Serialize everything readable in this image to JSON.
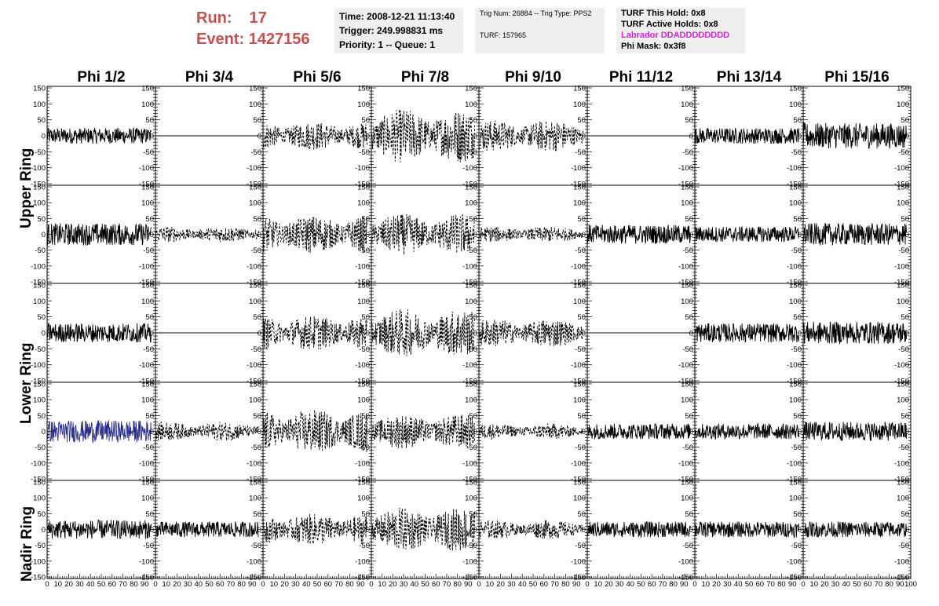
{
  "header": {
    "run_label": "Run:",
    "run_value": "17",
    "event_label": "Event:",
    "event_value": "1427156",
    "time": "Time: 2008-12-21 11:13:40",
    "trigger": "Trigger: 249.998831 ms",
    "priority": "Priority: 1 -- Queue: 1",
    "trig_num": "Trig Num: 26884 -- Trig Type: PPS2",
    "turf": "TURF: 157965",
    "turf_hold": "TURF This Hold: 0x8",
    "turf_active": "TURF Active Holds: 0x8",
    "labrador": "Labrador DDADDDDDDDD",
    "phi_mask": "Phi Mask: 0x3f8"
  },
  "colors": {
    "run_text": "#c75050",
    "labrador_text": "#e020e0",
    "panel_bg": "#efefef",
    "trace": "#000000",
    "highlight_trace": "#2b2f8a"
  },
  "phi_labels": [
    "Phi 1/2",
    "Phi 3/4",
    "Phi 5/6",
    "Phi 7/8",
    "Phi 9/10",
    "Phi 11/12",
    "Phi 13/14",
    "Phi 15/16"
  ],
  "ring_labels": {
    "upper": "Upper Ring",
    "lower": "Lower Ring",
    "nadir": "Nadir Ring"
  },
  "chart_data": {
    "type": "line",
    "description": "Waveform grid: 5 rows x 8 phi sectors of waveform traces (voltage vs sample time)",
    "xlim": [
      0,
      100
    ],
    "ylim": [
      -150,
      150
    ],
    "x_ticks": [
      0,
      10,
      20,
      30,
      40,
      50,
      60,
      70,
      80,
      90,
      100
    ],
    "y_ticks_rows_0_3": [
      -100,
      -50,
      0,
      50,
      100
    ],
    "y_ticks_row_4": [
      -150,
      -100,
      -50,
      0,
      50,
      100,
      150
    ],
    "rows": [
      {
        "group": "upper",
        "traces": [
          {
            "amp": 25,
            "style": "solid"
          },
          {
            "amp": 0,
            "style": "flat"
          },
          {
            "amp": 45,
            "style": "dashed"
          },
          {
            "amp": 85,
            "style": "dashed"
          },
          {
            "amp": 50,
            "style": "dashed"
          },
          {
            "amp": 0,
            "style": "flat"
          },
          {
            "amp": 25,
            "style": "solid"
          },
          {
            "amp": 40,
            "style": "solid"
          }
        ]
      },
      {
        "group": "upper",
        "traces": [
          {
            "amp": 35,
            "style": "solid"
          },
          {
            "amp": 25,
            "style": "dashed"
          },
          {
            "amp": 60,
            "style": "dashed"
          },
          {
            "amp": 65,
            "style": "dashed"
          },
          {
            "amp": 25,
            "style": "dashed"
          },
          {
            "amp": 30,
            "style": "solid"
          },
          {
            "amp": 25,
            "style": "solid"
          },
          {
            "amp": 35,
            "style": "solid"
          }
        ]
      },
      {
        "group": "lower",
        "traces": [
          {
            "amp": 30,
            "style": "solid"
          },
          {
            "amp": 0,
            "style": "flat"
          },
          {
            "amp": 55,
            "style": "dashed"
          },
          {
            "amp": 75,
            "style": "dashed"
          },
          {
            "amp": 45,
            "style": "dashed"
          },
          {
            "amp": 0,
            "style": "flat"
          },
          {
            "amp": 30,
            "style": "solid"
          },
          {
            "amp": 35,
            "style": "solid"
          }
        ]
      },
      {
        "group": "lower",
        "traces": [
          {
            "amp": 35,
            "style": "highlight"
          },
          {
            "amp": 30,
            "style": "dashed"
          },
          {
            "amp": 70,
            "style": "dashed"
          },
          {
            "amp": 55,
            "style": "dashed"
          },
          {
            "amp": 25,
            "style": "dashed"
          },
          {
            "amp": 25,
            "style": "solid"
          },
          {
            "amp": 25,
            "style": "solid"
          },
          {
            "amp": 30,
            "style": "solid"
          }
        ]
      },
      {
        "group": "nadir",
        "traces": [
          {
            "amp": 30,
            "style": "solid"
          },
          {
            "amp": 25,
            "style": "solid"
          },
          {
            "amp": 50,
            "style": "dashed"
          },
          {
            "amp": 70,
            "style": "dashed"
          },
          {
            "amp": 30,
            "style": "dashed"
          },
          {
            "amp": 25,
            "style": "solid"
          },
          {
            "amp": 25,
            "style": "solid"
          },
          {
            "amp": 25,
            "style": "solid"
          }
        ]
      }
    ]
  }
}
